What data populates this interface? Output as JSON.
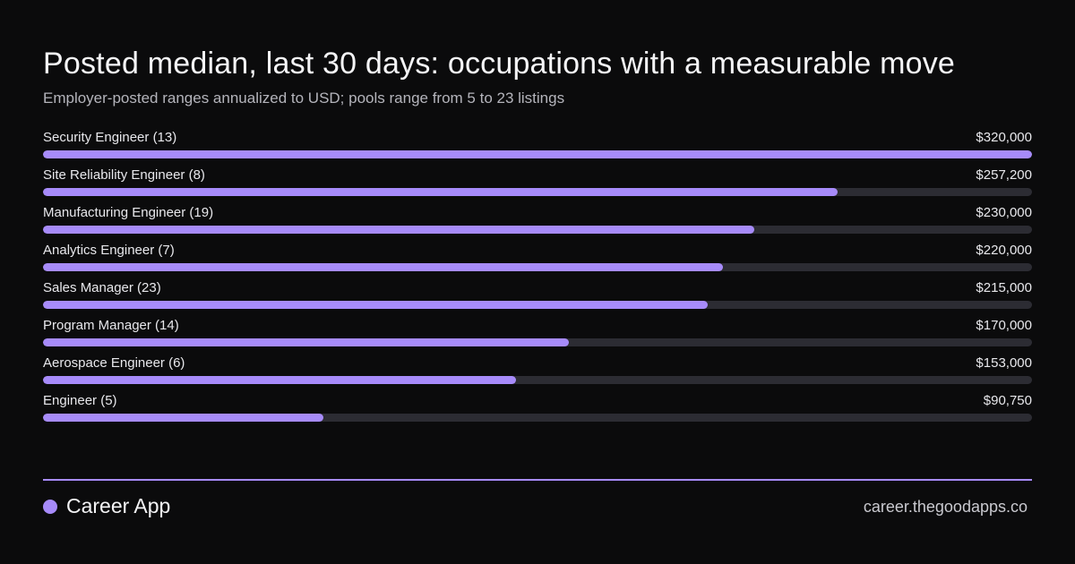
{
  "header": {
    "title": "Posted median, last 30 days: occupations with a measurable move",
    "subtitle": "Employer-posted ranges annualized to USD; pools range from 5 to 23 listings"
  },
  "chart_data": {
    "type": "bar",
    "orientation": "horizontal",
    "categories": [
      "Security Engineer (13)",
      "Site Reliability Engineer (8)",
      "Manufacturing Engineer (19)",
      "Analytics Engineer (7)",
      "Sales Manager (23)",
      "Program Manager (14)",
      "Aerospace Engineer (6)",
      "Engineer (5)"
    ],
    "values": [
      320000,
      257200,
      230000,
      220000,
      215000,
      170000,
      153000,
      90750
    ],
    "value_labels": [
      "$320,000",
      "$257,200",
      "$230,000",
      "$220,000",
      "$215,000",
      "$170,000",
      "$153,000",
      "$90,750"
    ],
    "xlim": [
      0,
      320000
    ],
    "colors": {
      "bar": "#a78bfa",
      "track": "#2c2c33"
    }
  },
  "footer": {
    "brand": "Career App",
    "url": "career.thegoodapps.co",
    "accent": "#a78bfa"
  }
}
